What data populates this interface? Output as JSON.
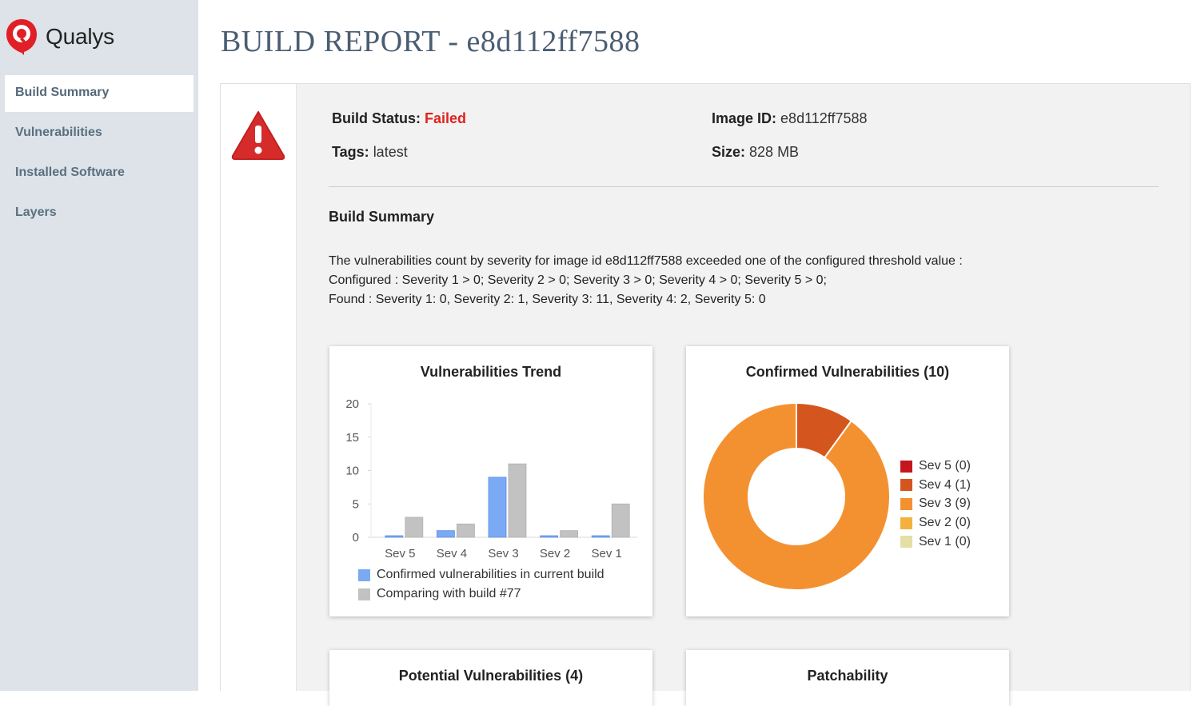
{
  "sidebar": {
    "brand": "Qualys",
    "items": [
      {
        "label": "Build Summary",
        "active": true
      },
      {
        "label": "Vulnerabilities",
        "active": false
      },
      {
        "label": "Installed Software",
        "active": false
      },
      {
        "label": "Layers",
        "active": false
      }
    ]
  },
  "page": {
    "title": "BUILD REPORT - e8d112ff7588"
  },
  "build": {
    "status_label": "Build Status:",
    "status_value": "Failed",
    "tags_label": "Tags:",
    "tags_value": "latest",
    "image_id_label": "Image ID:",
    "image_id_value": "e8d112ff7588",
    "size_label": "Size:",
    "size_value": "828 MB"
  },
  "summary": {
    "title": "Build Summary",
    "line1": "The vulnerabilities count by severity for image id e8d112ff7588 exceeded one of the configured threshold value :",
    "line2": "Configured : Severity 1 > 0; Severity 2 > 0; Severity 3 > 0; Severity 4 > 0; Severity 5 > 0;",
    "line3": "Found : Severity 1: 0, Severity 2: 1, Severity 3: 11, Severity 4: 2, Severity 5: 0"
  },
  "cards": {
    "trend_title": "Vulnerabilities Trend",
    "confirmed_title": "Confirmed Vulnerabilities (10)",
    "potential_title": "Potential Vulnerabilities (4)",
    "patchability_title": "Patchability"
  },
  "colors": {
    "current": "#7aaaf4",
    "previous": "#c2c2c2",
    "sev5": "#c4161c",
    "sev4": "#d4561e",
    "sev3": "#f39131",
    "sev2": "#f5b13f",
    "sev1": "#e3dfa6"
  },
  "chart_data": [
    {
      "type": "bar",
      "title": "Vulnerabilities Trend",
      "categories": [
        "Sev 5",
        "Sev 4",
        "Sev 3",
        "Sev 2",
        "Sev 1"
      ],
      "series": [
        {
          "name": "Confirmed vulnerabilities in current build",
          "values": [
            0,
            1,
            9,
            0,
            0
          ]
        },
        {
          "name": "Comparing with build #77",
          "values": [
            3,
            2,
            11,
            1,
            5
          ]
        }
      ],
      "yticks": [
        "0",
        "5",
        "10",
        "15",
        "20"
      ],
      "ylim": [
        0,
        20
      ],
      "legend": "bottom"
    },
    {
      "type": "pie",
      "title": "Confirmed Vulnerabilities (10)",
      "labels": [
        "Sev 5 (0)",
        "Sev 4 (1)",
        "Sev 3 (9)",
        "Sev 2 (0)",
        "Sev 1 (0)"
      ],
      "values": [
        0,
        1,
        9,
        0,
        0
      ],
      "donut": true,
      "legend": "right"
    }
  ]
}
